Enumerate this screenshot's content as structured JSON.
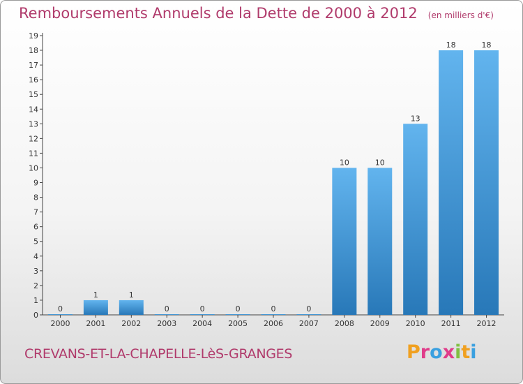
{
  "title": "Remboursements Annuels de la Dette de 2000 à 2012",
  "unit_note": "(en milliers d'€)",
  "commune": "CREVANS-ET-LA-CHAPELLE-LèS-GRANGES",
  "logo": {
    "letters": [
      "P",
      "r",
      "o",
      "x",
      "i",
      "t",
      "i"
    ],
    "colors": [
      "#f0a020",
      "#e03c8a",
      "#3aa0e0",
      "#e03c8a",
      "#80c040",
      "#f0a020",
      "#3aa0e0"
    ]
  },
  "colors": {
    "bar_light": "#62b4ee",
    "bar_dark": "#2878b8",
    "title": "#b03a6b"
  },
  "chart_data": {
    "type": "bar",
    "title": "Remboursements Annuels de la Dette de 2000 à 2012",
    "categories": [
      "2000",
      "2001",
      "2002",
      "2003",
      "2004",
      "2005",
      "2006",
      "2007",
      "2008",
      "2009",
      "2010",
      "2011",
      "2012"
    ],
    "values": [
      0,
      1,
      1,
      0,
      0,
      0,
      0,
      0,
      10,
      10,
      13,
      18,
      18
    ],
    "value_labels": [
      "0",
      "1",
      "1",
      "0",
      "0",
      "0",
      "0",
      "0",
      "10",
      "10",
      "13",
      "18",
      "18"
    ],
    "ylim": [
      0,
      19
    ],
    "yticks": [
      0,
      1,
      2,
      3,
      4,
      5,
      6,
      7,
      8,
      9,
      10,
      11,
      12,
      13,
      14,
      15,
      16,
      17,
      18,
      19
    ],
    "grid": false,
    "xlabel": "",
    "ylabel": ""
  }
}
